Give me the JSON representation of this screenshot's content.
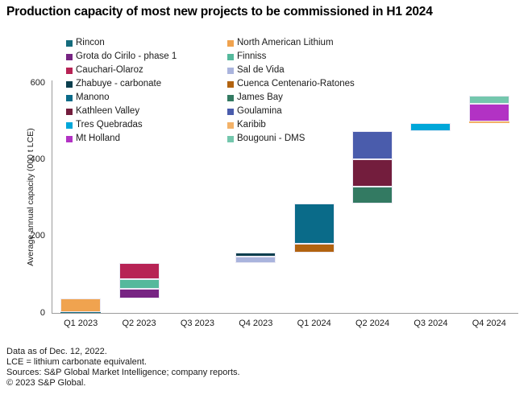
{
  "title": "Production capacity of most new projects to be commissioned in H1 2024",
  "footer": {
    "line1": "Data as of Dec. 12, 2022.",
    "line2": "LCE = lithium carbonate equivalent.",
    "line3": "Sources: S&P Global Market Intelligence; company reports.",
    "line4": "© 2023 S&P Global."
  },
  "chart_data": {
    "type": "bar",
    "subtype": "stacked-waterfall",
    "title": "Production capacity of most new projects to be commissioned in H1 2024",
    "xlabel": "",
    "ylabel": "Average annual capacity (000 t LCE)",
    "ylim": [
      0,
      600
    ],
    "yticks": [
      0,
      200,
      400,
      600
    ],
    "grid": false,
    "legend_position": "top-two-columns",
    "categories": [
      "Q1 2023",
      "Q2 2023",
      "Q3 2023",
      "Q4 2023",
      "Q1 2024",
      "Q2 2024",
      "Q3 2024",
      "Q4 2024"
    ],
    "projects": {
      "Rincon": "#156c7d",
      "North American Lithium": "#f0a34f",
      "Grota do Cirilo - phase 1": "#772583",
      "Finniss": "#55b99c",
      "Cauchari-Olaroz": "#b72355",
      "Sal de Vida": "#aab4dd",
      "Zhabuye - carbonate": "#0b3f4e",
      "Cuenca Centenario-Ratones": "#b26310",
      "Manono": "#0a6b89",
      "James Bay": "#337a62",
      "Kathleen Valley": "#731d3d",
      "Goulamina": "#4a5cac",
      "Tres Quebradas": "#00a7d9",
      "Karibib": "#f3b268",
      "Mt Holland": "#b232c4",
      "Bougouni - DMS": "#74c7ad"
    },
    "legend": {
      "column1": [
        "Rincon",
        "Grota do Cirilo - phase 1",
        "Cauchari-Olaroz",
        "Zhabuye - carbonate",
        "Manono",
        "Kathleen Valley",
        "Tres Quebradas",
        "Mt Holland"
      ],
      "column2": [
        "North American Lithium",
        "Finniss",
        "Sal de Vida",
        "Cuenca Centenario-Ratones",
        "James Bay",
        "Goulamina",
        "Karibib",
        "Bougouni - DMS"
      ]
    },
    "bars": [
      {
        "category": "Q1 2023",
        "start": 0,
        "segments": [
          {
            "project": "Rincon",
            "value": 3
          },
          {
            "project": "North American Lithium",
            "value": 35
          }
        ]
      },
      {
        "category": "Q2 2023",
        "start": 38,
        "segments": [
          {
            "project": "Grota do Cirilo - phase 1",
            "value": 25
          },
          {
            "project": "Finniss",
            "value": 26
          },
          {
            "project": "Cauchari-Olaroz",
            "value": 42
          }
        ]
      },
      {
        "category": "Q3 2023",
        "start": 131,
        "segments": []
      },
      {
        "category": "Q4 2023",
        "start": 131,
        "segments": [
          {
            "project": "Sal de Vida",
            "value": 15
          },
          {
            "project": "Zhabuye - carbonate",
            "value": 12
          }
        ]
      },
      {
        "category": "Q1 2024",
        "start": 158,
        "segments": [
          {
            "project": "Cuenca Centenario-Ratones",
            "value": 22
          },
          {
            "project": "Manono",
            "value": 105
          }
        ]
      },
      {
        "category": "Q2 2024",
        "start": 285,
        "segments": [
          {
            "project": "James Bay",
            "value": 45
          },
          {
            "project": "Kathleen Valley",
            "value": 70
          },
          {
            "project": "Goulamina",
            "value": 75
          }
        ]
      },
      {
        "category": "Q3 2024",
        "start": 475,
        "segments": [
          {
            "project": "Tres Quebradas",
            "value": 20
          }
        ]
      },
      {
        "category": "Q4 2024",
        "start": 495,
        "segments": [
          {
            "project": "Karibib",
            "value": 5
          },
          {
            "project": "Mt Holland",
            "value": 45
          },
          {
            "project": "Bougouni - DMS",
            "value": 21
          }
        ]
      }
    ]
  }
}
